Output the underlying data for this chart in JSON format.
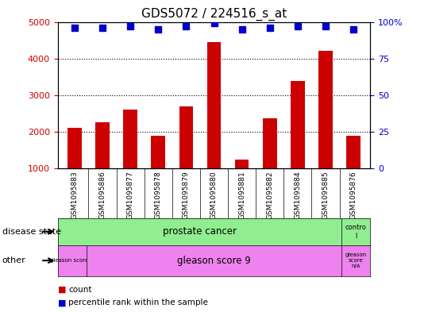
{
  "title": "GDS5072 / 224516_s_at",
  "samples": [
    "GSM1095883",
    "GSM1095886",
    "GSM1095877",
    "GSM1095878",
    "GSM1095879",
    "GSM1095880",
    "GSM1095881",
    "GSM1095882",
    "GSM1095884",
    "GSM1095885",
    "GSM1095876"
  ],
  "counts": [
    2100,
    2250,
    2600,
    1900,
    2700,
    4450,
    1250,
    2370,
    3380,
    4200,
    1900
  ],
  "percentile_ranks": [
    96,
    96,
    97,
    95,
    97,
    99,
    95,
    96,
    97,
    97,
    95
  ],
  "bar_color": "#cc0000",
  "dot_color": "#0000cc",
  "ylim_left": [
    1000,
    5000
  ],
  "ylim_right": [
    0,
    100
  ],
  "yticks_left": [
    1000,
    2000,
    3000,
    4000,
    5000
  ],
  "yticks_right": [
    0,
    25,
    50,
    75,
    100
  ],
  "bar_width": 0.5,
  "dot_size": 6,
  "plot_bg": "#ffffff",
  "tick_bg": "#d0d0d0",
  "disease_state_green": "#90ee90",
  "other_purple": "#ee82ee",
  "left_tick_color": "#cc0000",
  "right_tick_color": "#0000cc"
}
